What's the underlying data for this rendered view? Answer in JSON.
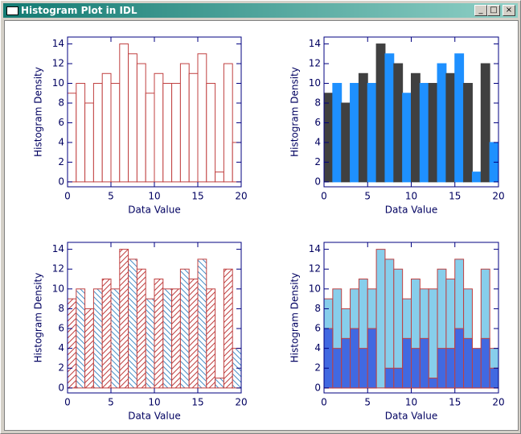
{
  "window": {
    "title": "Histogram Plot in IDL"
  },
  "chart_data": [
    {
      "type": "histogram",
      "style": "outline",
      "xlabel": "Data Value",
      "ylabel": "Histogram Density",
      "bins": [
        0,
        1,
        2,
        3,
        4,
        5,
        6,
        7,
        8,
        9,
        10,
        11,
        12,
        13,
        14,
        15,
        16,
        17,
        18,
        19,
        20
      ],
      "xlim": [
        0,
        20
      ],
      "ylim": [
        -0.5,
        14.7
      ],
      "xticks": [
        0,
        5,
        10,
        15,
        20
      ],
      "yticks": [
        0,
        2,
        4,
        6,
        8,
        10,
        12,
        14
      ],
      "axis_color": "#000080",
      "edge_color": "#c04040",
      "series": [
        {
          "values": [
            9,
            10,
            8,
            10,
            11,
            10,
            14,
            13,
            12,
            9,
            11,
            10,
            10,
            12,
            11,
            13,
            10,
            1,
            12,
            4
          ],
          "colors": [
            "#ffffff"
          ]
        }
      ]
    },
    {
      "type": "histogram",
      "style": "filled",
      "xlabel": "Data Value",
      "ylabel": "Histogram Density",
      "bins": [
        0,
        1,
        2,
        3,
        4,
        5,
        6,
        7,
        8,
        9,
        10,
        11,
        12,
        13,
        14,
        15,
        16,
        17,
        18,
        19,
        20
      ],
      "xlim": [
        0,
        20
      ],
      "ylim": [
        -0.5,
        14.7
      ],
      "xticks": [
        0,
        5,
        10,
        15,
        20
      ],
      "yticks": [
        0,
        2,
        4,
        6,
        8,
        10,
        12,
        14
      ],
      "axis_color": "#000080",
      "series": [
        {
          "values": [
            9,
            10,
            8,
            10,
            11,
            10,
            14,
            13,
            12,
            9,
            11,
            10,
            10,
            12,
            11,
            13,
            10,
            1,
            12,
            4
          ],
          "colors": [
            "#404040",
            "#1e90ff"
          ]
        }
      ]
    },
    {
      "type": "histogram",
      "style": "hatched",
      "xlabel": "Data Value",
      "ylabel": "Histogram Density",
      "bins": [
        0,
        1,
        2,
        3,
        4,
        5,
        6,
        7,
        8,
        9,
        10,
        11,
        12,
        13,
        14,
        15,
        16,
        17,
        18,
        19,
        20
      ],
      "xlim": [
        0,
        20
      ],
      "ylim": [
        -0.5,
        14.7
      ],
      "xticks": [
        0,
        5,
        10,
        15,
        20
      ],
      "yticks": [
        0,
        2,
        4,
        6,
        8,
        10,
        12,
        14
      ],
      "axis_color": "#000080",
      "edge_color": "#c04040",
      "series": [
        {
          "values": [
            9,
            10,
            8,
            10,
            11,
            10,
            14,
            13,
            12,
            9,
            11,
            10,
            10,
            12,
            11,
            13,
            10,
            1,
            12,
            4
          ],
          "colors": [
            "#c04040",
            "#4a90c8"
          ]
        }
      ]
    },
    {
      "type": "histogram",
      "style": "filled",
      "xlabel": "Data Value",
      "ylabel": "Histogram Density",
      "bins": [
        0,
        1,
        2,
        3,
        4,
        5,
        6,
        7,
        8,
        9,
        10,
        11,
        12,
        13,
        14,
        15,
        16,
        17,
        18,
        19,
        20
      ],
      "xlim": [
        0,
        20
      ],
      "ylim": [
        -0.5,
        14.7
      ],
      "xticks": [
        0,
        5,
        10,
        15,
        20
      ],
      "yticks": [
        0,
        2,
        4,
        6,
        8,
        10,
        12,
        14
      ],
      "axis_color": "#000080",
      "edge_color": "#c04040",
      "series": [
        {
          "values": [
            9,
            10,
            8,
            10,
            11,
            10,
            14,
            13,
            12,
            9,
            11,
            10,
            10,
            12,
            11,
            13,
            10,
            1,
            12,
            4
          ],
          "colors": [
            "#87ceeb"
          ]
        },
        {
          "values": [
            6,
            4,
            5,
            6,
            4,
            6,
            0,
            2,
            2,
            5,
            4,
            5,
            1,
            4,
            4,
            6,
            5,
            4,
            5,
            2
          ],
          "colors": [
            "#4169e1"
          ]
        }
      ]
    }
  ]
}
